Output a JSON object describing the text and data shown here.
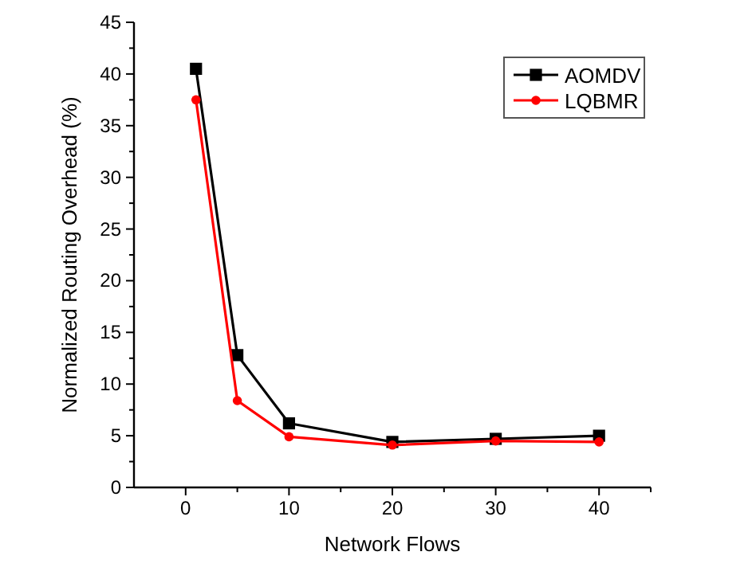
{
  "chart_data": {
    "type": "line",
    "xlabel": "Network Flows",
    "ylabel": "Normalized Routing Overhead (%)",
    "x": [
      1,
      5,
      10,
      20,
      30,
      40
    ],
    "series": [
      {
        "name": "AOMDV",
        "color": "#000000",
        "marker": "square",
        "values": [
          40.5,
          12.8,
          6.2,
          4.4,
          4.7,
          5.0
        ]
      },
      {
        "name": "LQBMR",
        "color": "#ff0000",
        "marker": "circle",
        "values": [
          37.5,
          8.4,
          4.9,
          4.1,
          4.5,
          4.4
        ]
      }
    ],
    "xlim": [
      -5,
      45
    ],
    "xticks": [
      0,
      {
        "value": 5,
        "label": null
      },
      10,
      {
        "value": 15,
        "label": null
      },
      20,
      {
        "value": 25,
        "label": null
      },
      30,
      {
        "value": 35,
        "label": null
      },
      40,
      {
        "value": 45,
        "label": null
      }
    ],
    "ylim": [
      0,
      45
    ],
    "yticks": [
      0,
      {
        "value": 2.5,
        "label": null
      },
      5,
      {
        "value": 7.5,
        "label": null
      },
      10,
      {
        "value": 12.5,
        "label": null
      },
      15,
      {
        "value": 17.5,
        "label": null
      },
      20,
      {
        "value": 22.5,
        "label": null
      },
      25,
      {
        "value": 27.5,
        "label": null
      },
      30,
      {
        "value": 32.5,
        "label": null
      },
      35,
      {
        "value": 37.5,
        "label": null
      },
      40,
      {
        "value": 42.5,
        "label": null
      },
      45
    ],
    "legend": "top right",
    "grid": false
  }
}
